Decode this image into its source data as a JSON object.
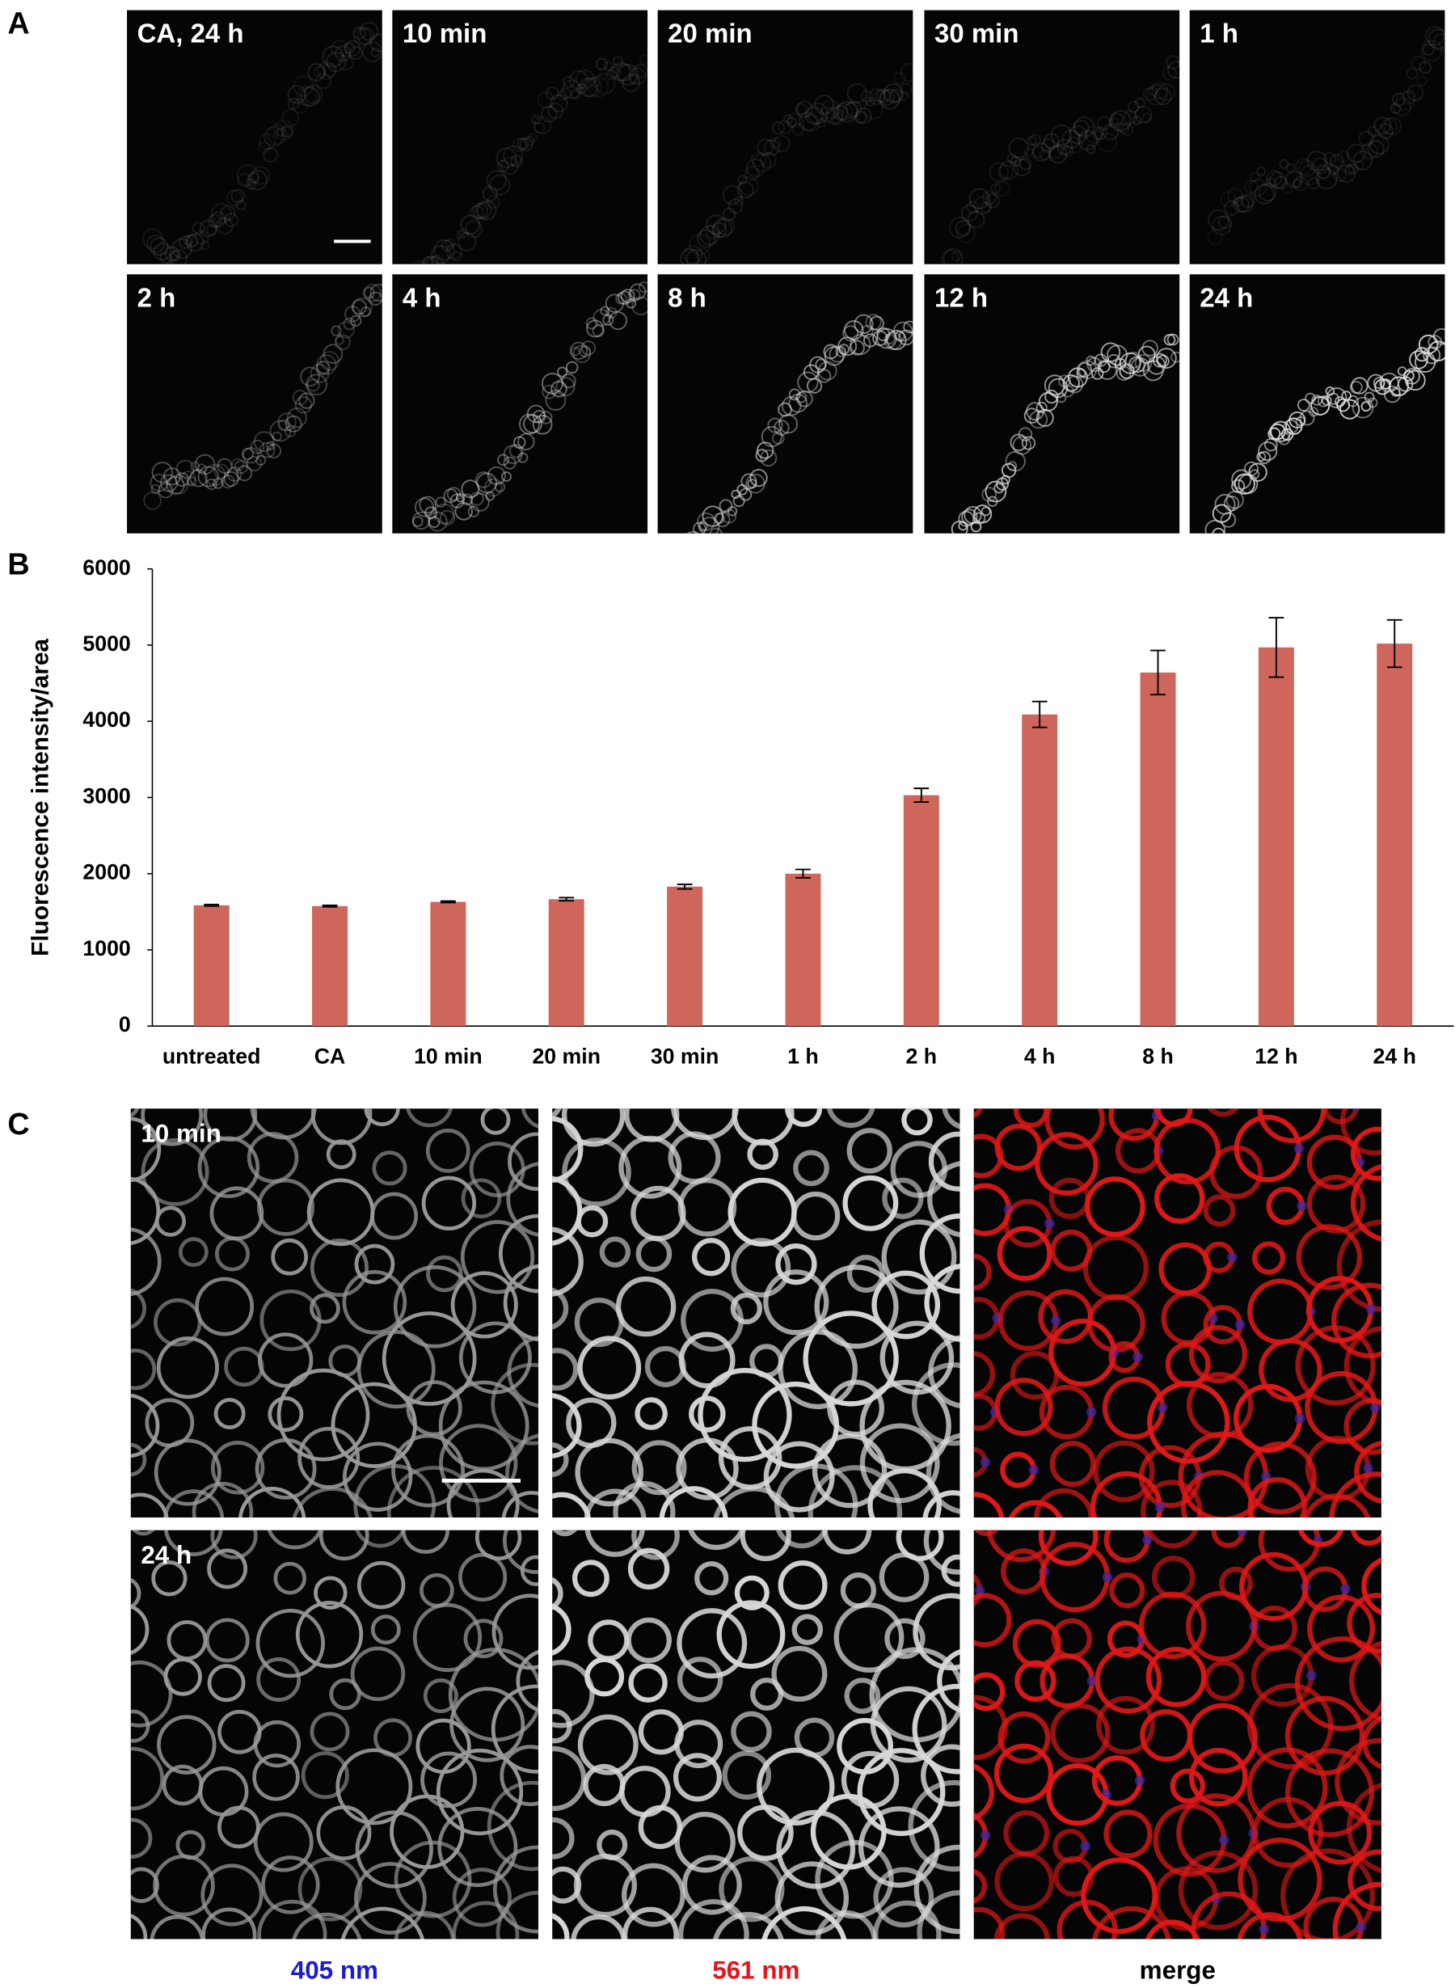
{
  "panel_a": {
    "label": "A",
    "images": [
      "CA, 24 h",
      "10 min",
      "20 min",
      "30 min",
      "1 h",
      "2 h",
      "4 h",
      "8 h",
      "12 h",
      "24 h"
    ]
  },
  "chart_data": {
    "type": "bar",
    "panel_label": "B",
    "y_label": "Fluorescence intensity/area",
    "categories": [
      "untreated",
      "CA",
      "10 min",
      "20 min",
      "30 min",
      "1 h",
      "2 h",
      "4 h",
      "8 h",
      "12 h",
      "24 h"
    ],
    "values": [
      1585,
      1575,
      1630,
      1665,
      1830,
      2000,
      3030,
      4090,
      4640,
      4970,
      5020
    ],
    "errors": [
      10,
      10,
      10,
      20,
      30,
      55,
      90,
      170,
      290,
      390,
      310
    ],
    "color": "#cf665b",
    "ylim": [
      0,
      6000
    ],
    "yticks": [
      0,
      1000,
      2000,
      3000,
      4000,
      5000,
      6000
    ],
    "grid": false
  },
  "panel_c": {
    "label": "C",
    "rows": [
      "10 min",
      "24 h"
    ],
    "columns": [
      "405 nm",
      "561 nm",
      "merge"
    ],
    "column_colors": [
      "#1c1ccf",
      "#e3141c",
      "#000000"
    ]
  }
}
